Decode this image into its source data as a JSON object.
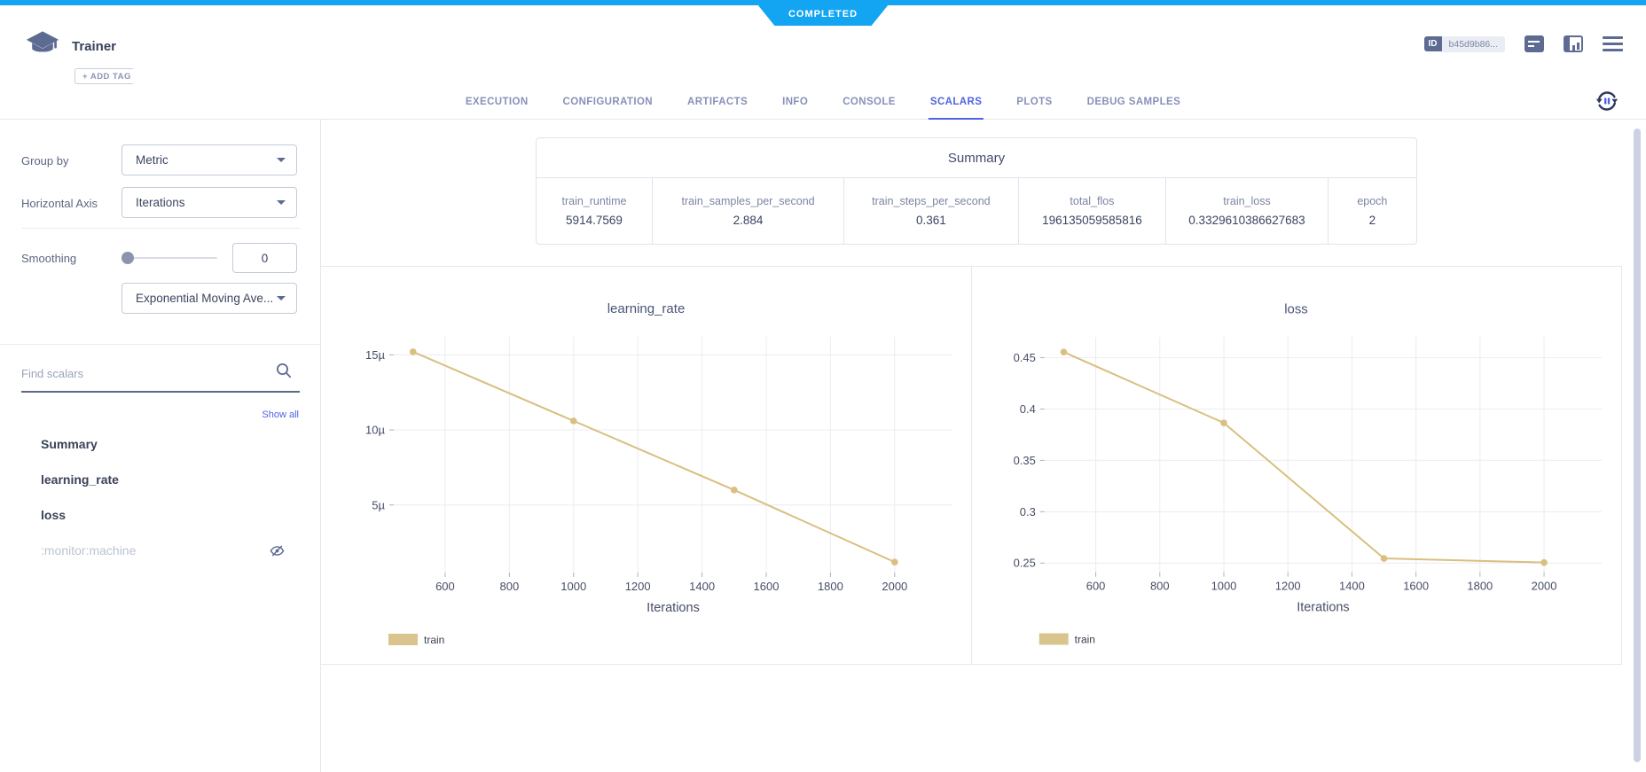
{
  "status_banner": {
    "label": "COMPLETED"
  },
  "header": {
    "title": "Trainer",
    "add_tag_label": "+ ADD TAG",
    "id_label": "ID",
    "id_value": "b45d9b86...",
    "icons": [
      "experiment-cap-icon",
      "details-icon",
      "panel-chart-icon",
      "hamburger-menu-icon",
      "auto-refresh-icon"
    ]
  },
  "tabs": {
    "items": [
      "EXECUTION",
      "CONFIGURATION",
      "ARTIFACTS",
      "INFO",
      "CONSOLE",
      "SCALARS",
      "PLOTS",
      "DEBUG SAMPLES"
    ],
    "active": "SCALARS"
  },
  "sidebar": {
    "group_by": {
      "label": "Group by",
      "value": "Metric"
    },
    "horizontal_axis": {
      "label": "Horizontal Axis",
      "value": "Iterations"
    },
    "smoothing": {
      "label": "Smoothing",
      "value": "0",
      "algorithm": "Exponential Moving Ave..."
    },
    "search": {
      "placeholder": "Find scalars",
      "icon": "search-icon"
    },
    "show_all_label": "Show all",
    "scalars": [
      {
        "label": "Summary",
        "hidden": false
      },
      {
        "label": "learning_rate",
        "hidden": false
      },
      {
        "label": "loss",
        "hidden": false
      },
      {
        "label": ":monitor:machine",
        "hidden": true,
        "icon": "eye-slash-icon"
      }
    ]
  },
  "summary_table": {
    "title": "Summary",
    "columns": [
      {
        "label": "train_runtime",
        "value": "5914.7569"
      },
      {
        "label": "train_samples_per_second",
        "value": "2.884"
      },
      {
        "label": "train_steps_per_second",
        "value": "0.361"
      },
      {
        "label": "total_flos",
        "value": "196135059585816"
      },
      {
        "label": "train_loss",
        "value": "0.3329610386627683"
      },
      {
        "label": "epoch",
        "value": "2"
      }
    ]
  },
  "chart_data": [
    {
      "name": "learning_rate",
      "type": "line",
      "title": "learning_rate",
      "xlabel": "Iterations",
      "xlim": [
        440,
        2180
      ],
      "ylim": [
        5e-07,
        1.62e-05
      ],
      "xticks": [
        {
          "v": 600,
          "label": "600"
        },
        {
          "v": 800,
          "label": "800"
        },
        {
          "v": 1000,
          "label": "1000"
        },
        {
          "v": 1200,
          "label": "1200"
        },
        {
          "v": 1400,
          "label": "1400"
        },
        {
          "v": 1600,
          "label": "1600"
        },
        {
          "v": 1800,
          "label": "1800"
        },
        {
          "v": 2000,
          "label": "2000"
        }
      ],
      "yticks": [
        {
          "v": 5e-06,
          "label": "5µ"
        },
        {
          "v": 1e-05,
          "label": "10µ"
        },
        {
          "v": 1.5e-05,
          "label": "15µ"
        }
      ],
      "series": [
        {
          "name": "train",
          "points": [
            [
              500,
              1.52e-05
            ],
            [
              1000,
              1.06e-05
            ],
            [
              1500,
              6e-06
            ],
            [
              2000,
              1.2e-06
            ]
          ]
        }
      ],
      "legend": [
        {
          "label": "train"
        }
      ],
      "legend_position": "bottom-left",
      "grid": true
    },
    {
      "name": "loss",
      "type": "line",
      "title": "loss",
      "xlabel": "Iterations",
      "xlim": [
        440,
        2180
      ],
      "ylim": [
        0.241,
        0.47
      ],
      "xticks": [
        {
          "v": 600,
          "label": "600"
        },
        {
          "v": 800,
          "label": "800"
        },
        {
          "v": 1000,
          "label": "1000"
        },
        {
          "v": 1200,
          "label": "1200"
        },
        {
          "v": 1400,
          "label": "1400"
        },
        {
          "v": 1600,
          "label": "1600"
        },
        {
          "v": 1800,
          "label": "1800"
        },
        {
          "v": 2000,
          "label": "2000"
        }
      ],
      "yticks": [
        {
          "v": 0.25,
          "label": "0.25"
        },
        {
          "v": 0.3,
          "label": "0.3"
        },
        {
          "v": 0.35,
          "label": "0.35"
        },
        {
          "v": 0.4,
          "label": "0.4"
        },
        {
          "v": 0.45,
          "label": "0.45"
        }
      ],
      "series": [
        {
          "name": "train",
          "points": [
            [
              500,
              0.4555
            ],
            [
              1000,
              0.3865
            ],
            [
              1500,
              0.2545
            ],
            [
              2000,
              0.2505
            ]
          ]
        }
      ],
      "legend": [
        {
          "label": "train"
        }
      ],
      "legend_position": "bottom-left",
      "grid": true
    }
  ],
  "colors": {
    "topbar_blue": "#14a5f2",
    "accent_blue": "#4f63e2",
    "line_tan": "#d9bf80",
    "legend_swatch_tan": "#d9c48e",
    "slate_icon": "#5d6b92"
  }
}
